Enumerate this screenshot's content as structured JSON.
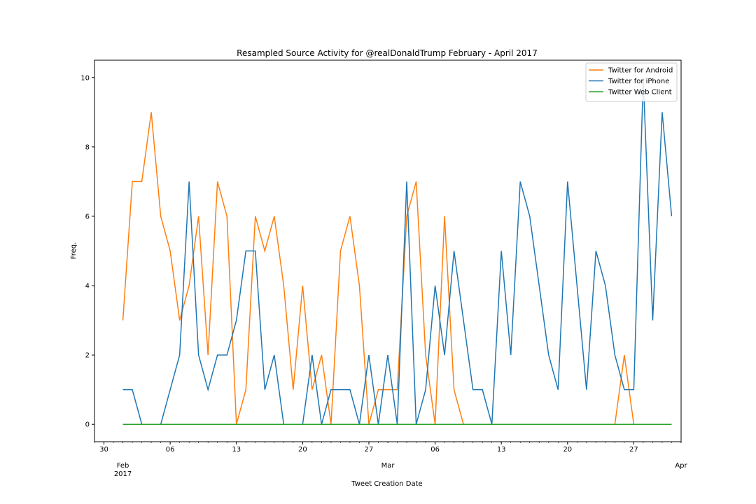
{
  "chart_data": {
    "type": "line",
    "title": "Resampled Source Activity for @realDonaldTrump February - April 2017",
    "xlabel": "Tweet Creation Date",
    "ylabel": "Freq.",
    "x_start": "2017-02-01",
    "x_end": "2017-03-31",
    "xlim": [
      "2017-01-29",
      "2017-04-01"
    ],
    "ylim": [
      -0.5,
      10.5
    ],
    "y_ticks": [
      0,
      2,
      4,
      6,
      8,
      10
    ],
    "x_major_ticks": [
      {
        "date": "2017-01-30",
        "label": "30"
      },
      {
        "date": "2017-02-06",
        "label": "06"
      },
      {
        "date": "2017-02-13",
        "label": "13"
      },
      {
        "date": "2017-02-20",
        "label": "20"
      },
      {
        "date": "2017-02-27",
        "label": "27"
      },
      {
        "date": "2017-03-06",
        "label": "06"
      },
      {
        "date": "2017-03-13",
        "label": "13"
      },
      {
        "date": "2017-03-20",
        "label": "20"
      },
      {
        "date": "2017-03-27",
        "label": "27"
      }
    ],
    "x_minor_ticks": [
      {
        "date": "2017-02-01",
        "label": "Feb",
        "sublabel": "2017"
      },
      {
        "date": "2017-03-01",
        "label": "Mar"
      },
      {
        "date": "2017-04-01",
        "label": "Apr"
      }
    ],
    "grid": false,
    "legend_position": "top-right",
    "series": [
      {
        "name": "Twitter for Android",
        "color": "#ff7f0e",
        "values": [
          3,
          7,
          7,
          9,
          6,
          5,
          3,
          4,
          6,
          2,
          7,
          6,
          0,
          1,
          6,
          5,
          6,
          4,
          1,
          4,
          1,
          2,
          0,
          5,
          6,
          4,
          0,
          1,
          1,
          1,
          6,
          7,
          2,
          0,
          6,
          1,
          0,
          0,
          0,
          0,
          0,
          0,
          0,
          0,
          0,
          0,
          0,
          0,
          0,
          0,
          0,
          0,
          0,
          2,
          0,
          0,
          0,
          0,
          0
        ]
      },
      {
        "name": "Twitter for iPhone",
        "color": "#1f77b4",
        "values": [
          1,
          1,
          0,
          0,
          0,
          1,
          2,
          7,
          2,
          1,
          2,
          2,
          3,
          5,
          5,
          1,
          2,
          0,
          0,
          0,
          2,
          0,
          1,
          1,
          1,
          0,
          2,
          0,
          2,
          0,
          7,
          0,
          1,
          4,
          2,
          5,
          3,
          1,
          1,
          0,
          5,
          2,
          7,
          6,
          4,
          2,
          1,
          7,
          4,
          1,
          5,
          4,
          2,
          1,
          1,
          10,
          3,
          9,
          6
        ]
      },
      {
        "name": "Twitter Web Client",
        "color": "#2ca02c",
        "values": [
          0,
          0,
          0,
          0,
          0,
          0,
          0,
          0,
          0,
          0,
          0,
          0,
          0,
          0,
          0,
          0,
          0,
          0,
          0,
          0,
          0,
          0,
          0,
          0,
          0,
          0,
          0,
          0,
          0,
          0,
          0,
          0,
          0,
          0,
          0,
          0,
          0,
          0,
          0,
          0,
          0,
          0,
          0,
          0,
          0,
          0,
          0,
          0,
          0,
          0,
          0,
          0,
          0,
          0,
          0,
          0,
          0,
          0,
          0
        ]
      }
    ]
  }
}
